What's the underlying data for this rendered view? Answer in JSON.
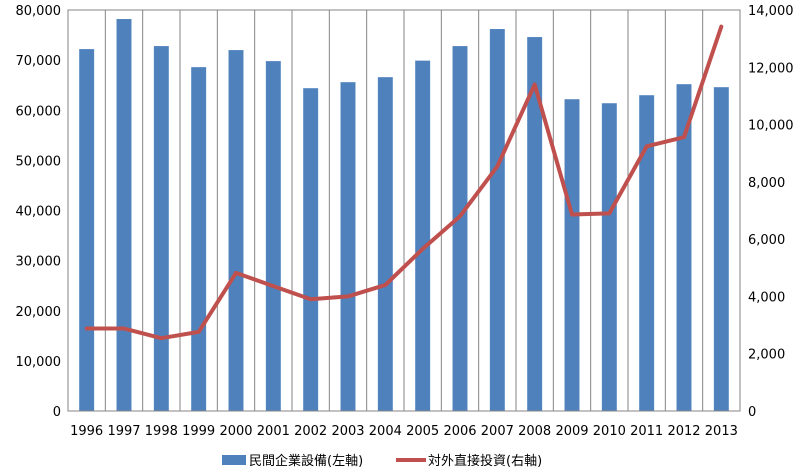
{
  "chart_data": {
    "type": "bar",
    "categories": [
      "1996",
      "1997",
      "1998",
      "1999",
      "2000",
      "2001",
      "2002",
      "2003",
      "2004",
      "2005",
      "2006",
      "2007",
      "2008",
      "2009",
      "2010",
      "2011",
      "2012",
      "2013"
    ],
    "series": [
      {
        "name": "民間企業設備(左軸)",
        "type": "bar",
        "axis": "left",
        "color": "#4F81BD",
        "values": [
          72200,
          78200,
          72800,
          68600,
          72000,
          69800,
          64400,
          65600,
          66600,
          69900,
          72800,
          76200,
          74600,
          62200,
          61400,
          63000,
          65200,
          64600
        ]
      },
      {
        "name": "対外直接投資(右軸)",
        "type": "line",
        "axis": "right",
        "color": "#C0504D",
        "values": [
          2880,
          2880,
          2540,
          2760,
          4820,
          4360,
          3900,
          4000,
          4400,
          5660,
          6800,
          8540,
          11400,
          6860,
          6900,
          9240,
          9560,
          13420
        ]
      }
    ],
    "y_left": {
      "min": 0,
      "max": 80000,
      "ticks": [
        "0",
        "10,000",
        "20,000",
        "30,000",
        "40,000",
        "50,000",
        "60,000",
        "70,000",
        "80,000"
      ]
    },
    "y_right": {
      "min": 0,
      "max": 14000,
      "ticks": [
        "0",
        "2,000",
        "4,000",
        "6,000",
        "8,000",
        "10,000",
        "12,000",
        "14,000"
      ]
    },
    "grid": "vertical",
    "legend_position": "bottom"
  }
}
